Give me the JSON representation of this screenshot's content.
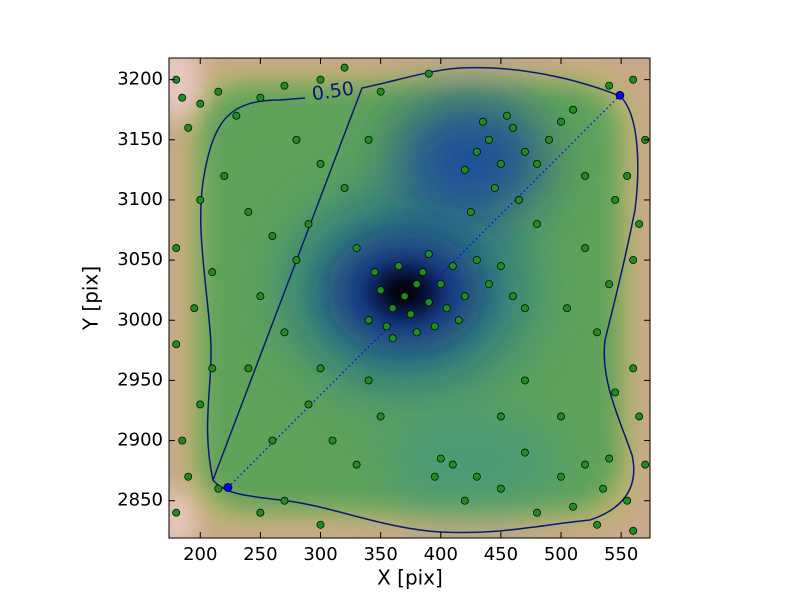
{
  "chart_data": {
    "type": "scatter",
    "x_label": "X [pix]",
    "y_label": "Y [pix]",
    "contour_label": "0.50",
    "xlim": [
      174,
      574
    ],
    "ylim": [
      2819,
      3218
    ],
    "xticks": [
      200,
      250,
      300,
      350,
      400,
      450,
      500,
      550
    ],
    "yticks": [
      2850,
      2900,
      2950,
      3000,
      3050,
      3100,
      3150,
      3200
    ],
    "color": "#1e8c1e",
    "x": [
      370,
      380,
      360,
      390,
      375,
      385,
      350,
      400,
      405,
      365,
      395,
      355,
      410,
      345,
      420,
      380,
      430,
      440,
      450,
      415,
      360,
      340,
      390,
      460,
      470,
      430,
      440,
      450,
      460,
      420,
      445,
      470,
      455,
      480,
      435,
      465,
      425,
      500,
      510,
      490,
      400,
      410,
      430,
      450,
      470,
      420,
      395,
      480,
      500,
      520,
      540,
      535,
      510,
      180,
      185,
      190,
      200,
      215,
      230,
      250,
      270,
      300,
      320,
      350,
      390,
      540,
      560,
      570,
      555,
      545,
      565,
      560,
      540,
      520,
      505,
      530,
      560,
      545,
      565,
      570,
      555,
      560,
      530,
      300,
      270,
      250,
      215,
      190,
      180,
      185,
      200,
      210,
      180,
      195,
      210,
      180,
      200,
      220,
      240,
      260,
      280,
      250,
      270,
      240,
      290,
      310,
      260,
      330,
      350,
      300,
      320,
      340,
      290,
      330,
      300,
      340,
      470,
      500,
      450,
      480,
      520,
      280
    ],
    "y": [
      3020,
      3030,
      3010,
      3015,
      3005,
      3040,
      3025,
      3030,
      3010,
      3045,
      2995,
      2995,
      3045,
      3040,
      3020,
      2990,
      3050,
      3030,
      3045,
      3000,
      2985,
      3000,
      3055,
      3020,
      3010,
      3140,
      3150,
      3130,
      3160,
      3125,
      3110,
      3140,
      3170,
      3130,
      3165,
      3100,
      3090,
      3165,
      3175,
      3150,
      2885,
      2880,
      2870,
      2860,
      2890,
      2850,
      2870,
      2840,
      2870,
      2880,
      2885,
      2860,
      2845,
      3200,
      3185,
      3160,
      3180,
      3190,
      3170,
      3185,
      3195,
      3200,
      3210,
      3190,
      3205,
      3195,
      3200,
      3150,
      3120,
      3100,
      3080,
      3050,
      3030,
      3060,
      3010,
      2990,
      2960,
      2940,
      2920,
      2880,
      2850,
      2825,
      2830,
      2830,
      2850,
      2840,
      2860,
      2870,
      2840,
      2900,
      2930,
      2960,
      2980,
      3010,
      3040,
      3060,
      3100,
      3120,
      3090,
      3070,
      3050,
      3020,
      2990,
      2960,
      2930,
      2900,
      2900,
      2880,
      2920,
      3130,
      3110,
      3150,
      3080,
      3060,
      2960,
      2950,
      2950,
      2920,
      2920,
      3080,
      3120,
      3150
    ],
    "endpoints": {
      "x": [
        223,
        549
      ],
      "y": [
        2861,
        3187
      ],
      "color": "#0000ff"
    }
  }
}
